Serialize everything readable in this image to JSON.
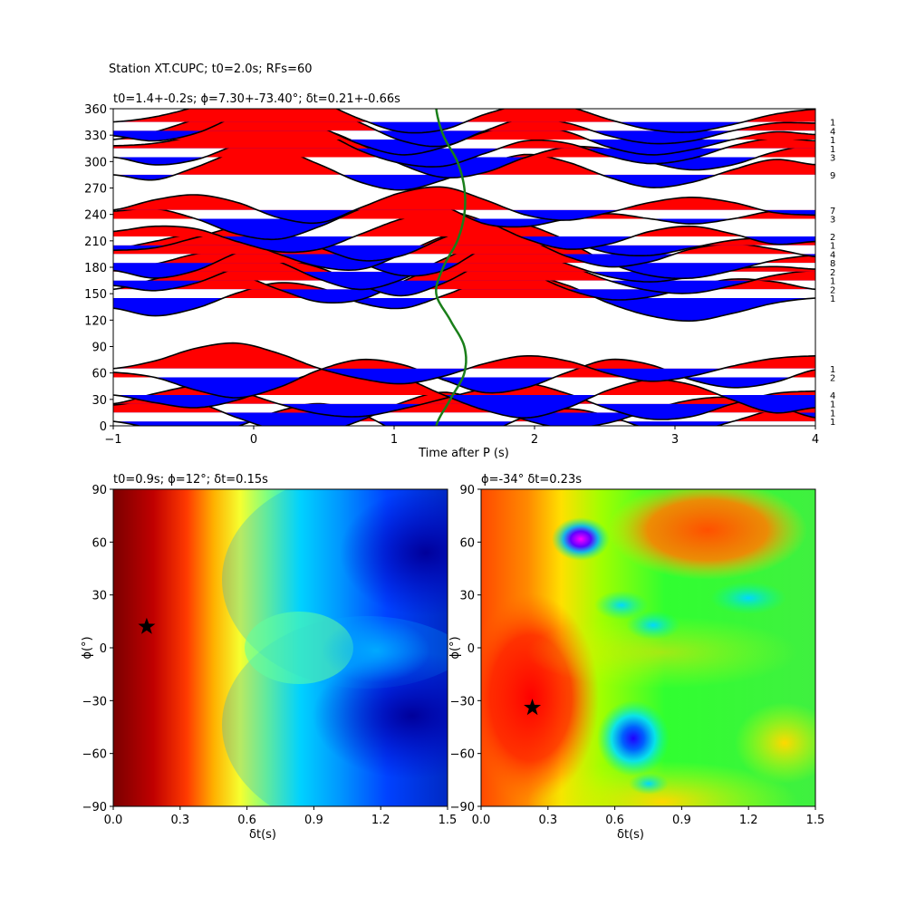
{
  "figure": {
    "suptitle": "Station XT.CUPC; t0=2.0s; RFs=60"
  },
  "colors": {
    "positive": "#ff0000",
    "negative": "#0000ff",
    "trace": "#000000",
    "delay_curve": "#1a7f1a",
    "frame": "#000000"
  },
  "chart_data": [
    {
      "type": "line",
      "name": "receiver-function-section",
      "title": "t0=1.4+-0.2s; ϕ=7.30+-73.40°; δt=0.21+-0.66s",
      "xlabel": "Time after P (s)",
      "ylabel": "",
      "xlim": [
        -1,
        4
      ],
      "ylim": [
        0,
        360
      ],
      "xticks": [
        "−1",
        "0",
        "1",
        "2",
        "3",
        "4"
      ],
      "yticks": [
        "0",
        "30",
        "60",
        "90",
        "120",
        "150",
        "180",
        "210",
        "240",
        "270",
        "300",
        "330",
        "360"
      ],
      "fill_positive": "red",
      "fill_negative": "blue",
      "bins": [
        {
          "baz": 5,
          "count": "1",
          "amp": [
            0.0,
            -0.3,
            -0.6,
            -0.2,
            0.4,
            0.7,
            0.3,
            -0.5,
            -0.9,
            -0.5,
            0.2,
            0.5,
            0.2,
            -0.3,
            -0.4,
            0.0,
            0.5,
            1.0
          ]
        },
        {
          "baz": 15,
          "count": "1",
          "amp": [
            0.3,
            0.5,
            0.4,
            -0.2,
            -0.7,
            -0.8,
            -0.3,
            0.4,
            0.8,
            0.4,
            -0.3,
            -0.6,
            -0.4,
            0.1,
            0.5,
            0.6,
            0.3,
            -0.2
          ]
        },
        {
          "baz": 25,
          "count": "1",
          "amp": [
            0.0,
            0.4,
            0.7,
            0.5,
            0.0,
            -0.4,
            -0.5,
            -0.2,
            0.2,
            0.6,
            0.8,
            0.4,
            -0.2,
            -0.6,
            -0.5,
            0.0,
            0.4,
            0.5
          ]
        },
        {
          "baz": 35,
          "count": "4",
          "amp": [
            0.0,
            -0.3,
            -0.5,
            -0.2,
            0.4,
            0.9,
            1.1,
            0.7,
            0.0,
            -0.6,
            -0.9,
            -0.5,
            0.2,
            0.6,
            0.4,
            -0.2,
            -0.7,
            -0.5
          ]
        },
        {
          "baz": 55,
          "count": "2",
          "amp": [
            0.2,
            0.0,
            -0.5,
            -0.8,
            -0.4,
            0.3,
            0.7,
            0.5,
            -0.1,
            -0.6,
            -0.4,
            0.2,
            0.7,
            0.5,
            -0.1,
            -0.4,
            -0.2,
            0.3
          ]
        },
        {
          "baz": 65,
          "count": "1",
          "amp": [
            0.0,
            0.3,
            0.8,
            1.0,
            0.6,
            0.0,
            -0.4,
            -0.6,
            -0.3,
            0.2,
            0.5,
            0.3,
            -0.2,
            -0.5,
            -0.3,
            0.1,
            0.4,
            0.5
          ]
        },
        {
          "baz": 145,
          "count": "1",
          "amp": [
            -0.4,
            -0.7,
            -0.4,
            0.2,
            0.6,
            0.4,
            -0.2,
            -0.4,
            0.1,
            0.7,
            0.9,
            0.5,
            -0.2,
            -0.7,
            -0.9,
            -0.6,
            -0.2,
            0.0
          ]
        },
        {
          "baz": 155,
          "count": "2",
          "amp": [
            0.0,
            0.4,
            0.8,
            0.6,
            0.0,
            -0.5,
            -0.4,
            0.3,
            1.0,
            1.2,
            0.7,
            0.0,
            -0.4,
            -0.3,
            0.1,
            0.4,
            0.3,
            0.0
          ]
        },
        {
          "baz": 165,
          "count": "1",
          "amp": [
            -0.2,
            -0.4,
            -0.1,
            0.5,
            0.8,
            0.5,
            -0.2,
            -0.6,
            -0.1,
            0.7,
            1.0,
            0.6,
            0.0,
            -0.4,
            -0.5,
            -0.2,
            0.2,
            0.4
          ]
        },
        {
          "baz": 175,
          "count": "2",
          "amp": [
            0.1,
            0.3,
            0.7,
            0.9,
            0.4,
            -0.3,
            -0.7,
            -0.3,
            0.5,
            1.1,
            0.9,
            0.3,
            -0.2,
            -0.4,
            -0.2,
            0.1,
            0.2,
            0.1
          ]
        },
        {
          "baz": 185,
          "count": "8",
          "amp": [
            -0.3,
            -0.6,
            -0.3,
            0.4,
            0.9,
            0.7,
            0.0,
            -0.5,
            -0.3,
            0.6,
            1.2,
            0.8,
            0.0,
            -0.5,
            -0.6,
            -0.3,
            0.1,
            0.3
          ]
        },
        {
          "baz": 195,
          "count": "4",
          "amp": [
            0.2,
            0.5,
            0.8,
            0.6,
            0.0,
            -0.5,
            -0.6,
            0.0,
            0.7,
            1.0,
            0.6,
            -0.1,
            -0.5,
            -0.3,
            0.2,
            0.4,
            0.2,
            -0.1
          ]
        },
        {
          "baz": 205,
          "count": "1",
          "amp": [
            -0.2,
            -0.1,
            0.3,
            0.7,
            0.5,
            -0.1,
            -0.6,
            -0.4,
            0.3,
            0.9,
            0.8,
            0.2,
            -0.3,
            -0.4,
            -0.1,
            0.2,
            0.3,
            0.2
          ]
        },
        {
          "baz": 215,
          "count": "2",
          "amp": [
            0.2,
            0.4,
            0.3,
            -0.2,
            -0.6,
            -0.5,
            0.1,
            0.7,
            1.0,
            0.6,
            -0.1,
            -0.5,
            -0.3,
            0.2,
            0.4,
            0.1,
            -0.3,
            -0.2
          ]
        },
        {
          "baz": 235,
          "count": "3",
          "amp": [
            0.3,
            0.4,
            0.0,
            -0.6,
            -0.8,
            -0.3,
            0.4,
            0.9,
            0.5,
            -0.2,
            -0.3,
            0.0,
            0.2,
            0.0,
            -0.2,
            0.0,
            0.3,
            0.2
          ]
        },
        {
          "baz": 245,
          "count": "7",
          "amp": [
            0.0,
            0.4,
            0.6,
            0.3,
            -0.3,
            -0.5,
            0.1,
            0.7,
            0.9,
            0.4,
            -0.2,
            -0.4,
            -0.1,
            0.3,
            0.5,
            0.3,
            -0.1,
            -0.2
          ]
        },
        {
          "baz": 285,
          "count": "9",
          "amp": [
            0.0,
            -0.2,
            0.3,
            0.9,
            1.0,
            0.4,
            -0.3,
            -0.6,
            -0.2,
            0.4,
            0.8,
            0.5,
            -0.1,
            -0.5,
            -0.3,
            0.2,
            0.6,
            0.4
          ]
        },
        {
          "baz": 305,
          "count": "3",
          "amp": [
            0.0,
            -0.3,
            -0.1,
            0.5,
            1.0,
            1.1,
            0.5,
            -0.3,
            -0.8,
            -0.6,
            0.0,
            0.4,
            0.3,
            -0.2,
            -0.5,
            -0.3,
            0.2,
            0.5
          ]
        },
        {
          "baz": 315,
          "count": "1",
          "amp": [
            0.1,
            0.2,
            0.5,
            0.9,
            1.2,
            0.7,
            -0.1,
            -0.6,
            -0.7,
            -0.2,
            0.3,
            0.2,
            -0.3,
            -0.6,
            -0.4,
            0.1,
            0.4,
            0.3
          ]
        },
        {
          "baz": 325,
          "count": "1",
          "amp": [
            0.0,
            0.3,
            0.8,
            1.2,
            1.1,
            0.5,
            -0.2,
            -0.6,
            -0.3,
            0.3,
            0.6,
            0.3,
            -0.3,
            -0.6,
            -0.4,
            0.0,
            0.3,
            0.2
          ]
        },
        {
          "baz": 335,
          "count": "4",
          "amp": [
            -0.2,
            -0.4,
            -0.1,
            0.6,
            1.2,
            1.0,
            0.3,
            -0.4,
            -0.6,
            0.0,
            0.5,
            0.3,
            -0.2,
            -0.5,
            -0.4,
            0.0,
            0.3,
            0.3
          ]
        },
        {
          "baz": 345,
          "count": "1",
          "amp": [
            0.0,
            0.2,
            0.6,
            1.1,
            1.3,
            0.8,
            0.1,
            -0.4,
            -0.3,
            0.3,
            0.7,
            0.6,
            0.1,
            -0.3,
            -0.4,
            -0.1,
            0.3,
            0.5
          ]
        }
      ],
      "delay_curve": {
        "baz": [
          0,
          30,
          60,
          90,
          120,
          150,
          180,
          210,
          240,
          270,
          300,
          330,
          360
        ],
        "t": [
          1.3,
          1.4,
          1.5,
          1.5,
          1.4,
          1.3,
          1.35,
          1.45,
          1.5,
          1.5,
          1.45,
          1.35,
          1.3
        ]
      }
    },
    {
      "type": "heatmap",
      "name": "energy-grid-left",
      "title": "t0=0.9s; ϕ=12°; δt=0.15s",
      "xlabel": "δt(s)",
      "ylabel": "ϕ(°)",
      "xlim": [
        0,
        1.5
      ],
      "ylim": [
        -90,
        90
      ],
      "xticks": [
        "0.0",
        "0.3",
        "0.6",
        "0.9",
        "1.2",
        "1.5"
      ],
      "yticks": [
        "−90",
        "−60",
        "−30",
        "0",
        "30",
        "60",
        "90"
      ],
      "colormap": "jet",
      "best": {
        "dt": 0.15,
        "phi": 12
      }
    },
    {
      "type": "heatmap",
      "name": "energy-grid-right",
      "title": "ϕ=-34° δt=0.23s",
      "xlabel": "δt(s)",
      "ylabel": "ϕ(°)",
      "xlim": [
        0,
        1.5
      ],
      "ylim": [
        -90,
        90
      ],
      "xticks": [
        "0.0",
        "0.3",
        "0.6",
        "0.9",
        "1.2",
        "1.5"
      ],
      "yticks": [
        "−90",
        "−60",
        "−30",
        "0",
        "30",
        "60",
        "90"
      ],
      "colormap": "hsv",
      "best": {
        "dt": 0.23,
        "phi": -34
      }
    }
  ]
}
